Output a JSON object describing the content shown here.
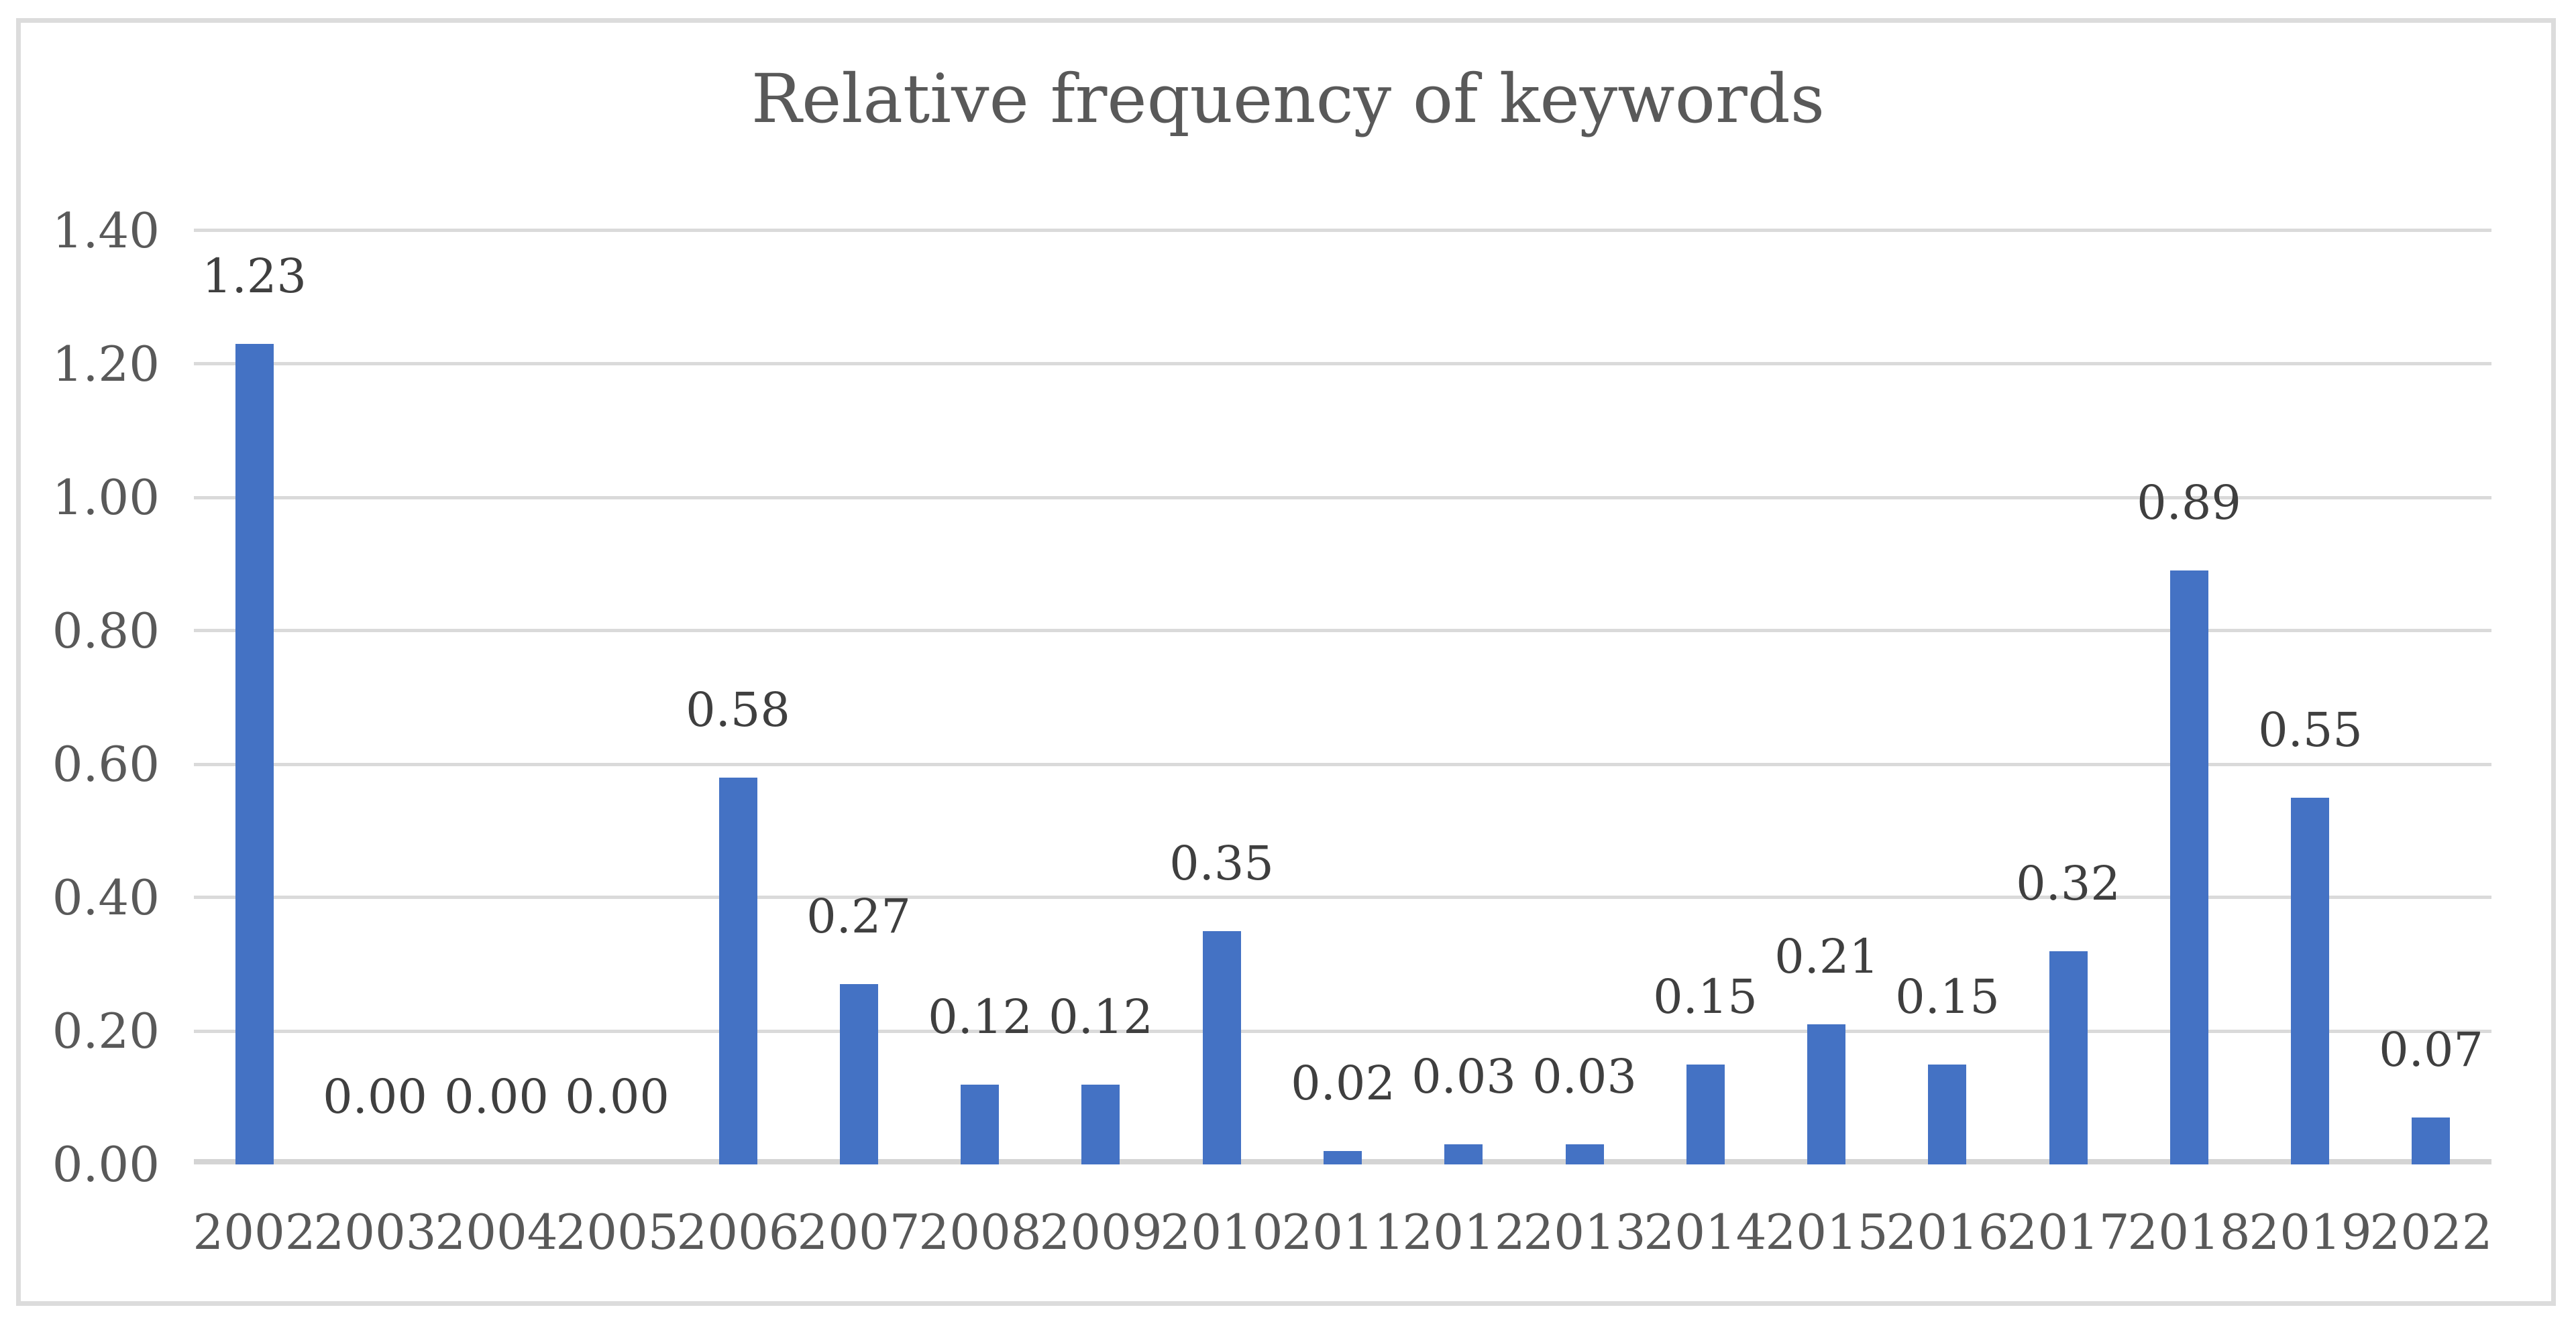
{
  "figure": {
    "title": "Relative frequency of keywords"
  },
  "colors": {
    "background": "#FFFFFF",
    "bar": "#4472C4",
    "gridline": "#DADADA",
    "axis_line": "#D4D4D4",
    "frame_border": "#DCDCDC",
    "title_text": "#595959",
    "axis_text": "#595959",
    "data_label_text": "#3F3F3F"
  },
  "chart_data": {
    "type": "bar",
    "title": "Relative frequency of keywords",
    "categories": [
      "2002",
      "2003",
      "2004",
      "2005",
      "2006",
      "2007",
      "2008",
      "2009",
      "2010",
      "2011",
      "2012",
      "2013",
      "2014",
      "2015",
      "2016",
      "2017",
      "2018",
      "2019",
      "2022"
    ],
    "values": [
      1.23,
      0.0,
      0.0,
      0.0,
      0.58,
      0.27,
      0.12,
      0.12,
      0.35,
      0.02,
      0.03,
      0.03,
      0.15,
      0.21,
      0.15,
      0.32,
      0.89,
      0.55,
      0.07
    ],
    "data_labels": [
      "1.23",
      "0.00",
      "0.00",
      "0.00",
      "0.58",
      "0.27",
      "0.12",
      "0.12",
      "0.35",
      "0.02",
      "0.03",
      "0.03",
      "0.15",
      "0.21",
      "0.15",
      "0.32",
      "0.89",
      "0.55",
      "0.07"
    ],
    "xlabel": "",
    "ylabel": "",
    "ylim": [
      0,
      1.4
    ],
    "y_tick_step": 0.2,
    "y_ticks": [
      "0.00",
      "0.20",
      "0.40",
      "0.60",
      "0.80",
      "1.00",
      "1.20",
      "1.40"
    ],
    "grid": true,
    "legend": false,
    "bar_color": "#4472C4"
  }
}
